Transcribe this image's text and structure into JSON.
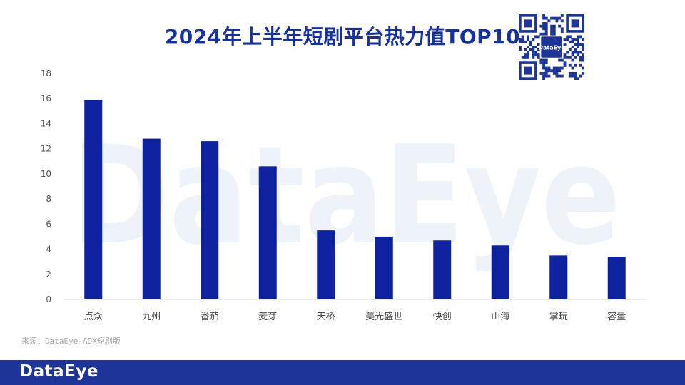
{
  "brand": {
    "watermark_text": "DataEye",
    "footer_logo": "DataEye",
    "qr_label": "DataEye",
    "accent_color": "#0e22a0",
    "footer_color": "#1d3599",
    "title_color": "#1530a0"
  },
  "source_note": "来源：DataEye-ADX短剧版",
  "chart_data": {
    "type": "bar",
    "title": "2024年上半年短剧平台热力值TOP10",
    "xlabel": "",
    "ylabel": "",
    "categories": [
      "点众",
      "九州",
      "番茄",
      "麦芽",
      "天桥",
      "美光盛世",
      "快创",
      "山海",
      "掌玩",
      "容量"
    ],
    "values": [
      15.9,
      12.8,
      12.6,
      10.6,
      5.5,
      5.0,
      4.7,
      4.3,
      3.5,
      3.4
    ],
    "ylim": [
      0,
      18
    ],
    "yticks": [
      0,
      2,
      4,
      6,
      8,
      10,
      12,
      14,
      16,
      18
    ],
    "grid": false,
    "legend": "none",
    "bar_color": "#0e22a0"
  }
}
